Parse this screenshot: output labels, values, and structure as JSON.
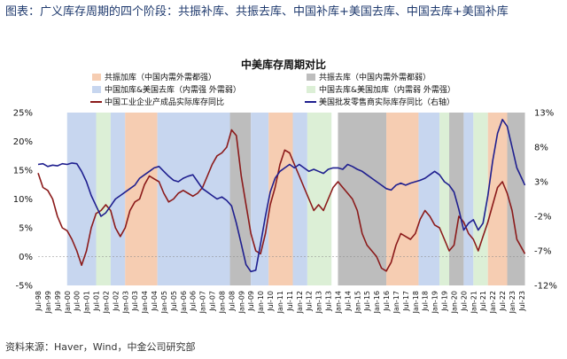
{
  "caption": "图表：广义库存周期的四个阶段：共振补库、共振去库、中国补库+美国去库、中国去库+美国补库",
  "source": "资料来源：Haver，Wind，中金公司研究部",
  "colors": {
    "resonance_restock": "#f6cdb2",
    "resonance_destock": "#bdbdbd",
    "cn_restock_us_destock": "#c7d6ef",
    "cn_destock_us_restock": "#dcefd6",
    "cn_line": "#8b1a1a",
    "us_line": "#1f1f8f"
  },
  "chart_data": {
    "type": "line",
    "title": "中美库存周期对比",
    "x_start": "1998-07",
    "x_end": "2023-12",
    "x_tick_labels": [
      "Jul-98",
      "Jan-99",
      "Jul-99",
      "Jan-00",
      "Jul-00",
      "Jan-01",
      "Jul-01",
      "Jan-02",
      "Jul-02",
      "Jan-03",
      "Jul-03",
      "Jan-04",
      "Jul-04",
      "Jan-05",
      "Jul-05",
      "Jan-06",
      "Jul-06",
      "Jan-07",
      "Jul-07",
      "Jan-08",
      "Jul-08",
      "Jan-09",
      "Jul-09",
      "Jan-10",
      "Jul-10",
      "Jan-11",
      "Jul-11",
      "Jan-12",
      "Jul-12",
      "Jan-13",
      "Jul-13",
      "Jan-14",
      "Jul-14",
      "Jan-15",
      "Jul-15",
      "Jan-16",
      "Jul-16",
      "Jan-17",
      "Jul-17",
      "Jan-18",
      "Jul-18",
      "Jan-19",
      "Jul-19",
      "Jan-20",
      "Jul-20",
      "Jan-21",
      "Jul-21",
      "Jan-22",
      "Jul-22",
      "Jan-23",
      "Jul-23"
    ],
    "y_left": {
      "min": -5,
      "max": 25,
      "ticks": [
        "-5%",
        "0%",
        "5%",
        "10%",
        "15%",
        "20%",
        "25%"
      ]
    },
    "y_right": {
      "min": -12,
      "max": 13,
      "ticks": [
        "-12%",
        "-7%",
        "-2%",
        "3%",
        "8%",
        "13%"
      ]
    },
    "legend": [
      {
        "label": "共振加库（中国内需外需都强）",
        "kind": "resonance_restock"
      },
      {
        "label": "共振去库（中国内需外需都弱）",
        "kind": "resonance_destock"
      },
      {
        "label": "中国加库&美国去库（内需强 外需弱）",
        "kind": "cn_restock_us_destock"
      },
      {
        "label": "中国去库&美国加库（内需弱 外需强）",
        "kind": "cn_destock_us_restock"
      },
      {
        "label": "中国工业企业产成品实际库存同比",
        "kind": "cn_line"
      },
      {
        "label": "美国批发零售商实际库存同比（右轴）",
        "kind": "us_line"
      }
    ],
    "phases": [
      {
        "start": "2000-01",
        "end": "2001-07",
        "kind": "cn_restock_us_destock"
      },
      {
        "start": "2001-07",
        "end": "2002-04",
        "kind": "cn_destock_us_restock"
      },
      {
        "start": "2002-04",
        "end": "2003-01",
        "kind": "cn_restock_us_destock"
      },
      {
        "start": "2003-01",
        "end": "2004-09",
        "kind": "resonance_restock"
      },
      {
        "start": "2004-09",
        "end": "2008-06",
        "kind": "cn_restock_us_destock"
      },
      {
        "start": "2008-06",
        "end": "2009-07",
        "kind": "resonance_destock"
      },
      {
        "start": "2009-07",
        "end": "2010-06",
        "kind": "cn_restock_us_destock"
      },
      {
        "start": "2010-06",
        "end": "2011-09",
        "kind": "resonance_restock"
      },
      {
        "start": "2011-09",
        "end": "2012-06",
        "kind": "cn_restock_us_destock"
      },
      {
        "start": "2012-06",
        "end": "2013-09",
        "kind": "cn_destock_us_restock"
      },
      {
        "start": "2014-01",
        "end": "2016-07",
        "kind": "resonance_destock"
      },
      {
        "start": "2016-07",
        "end": "2018-03",
        "kind": "resonance_restock"
      },
      {
        "start": "2018-03",
        "end": "2019-04",
        "kind": "cn_restock_us_destock"
      },
      {
        "start": "2019-04",
        "end": "2019-10",
        "kind": "cn_destock_us_restock"
      },
      {
        "start": "2019-10",
        "end": "2020-07",
        "kind": "resonance_destock"
      },
      {
        "start": "2020-07",
        "end": "2021-01",
        "kind": "cn_restock_us_destock"
      },
      {
        "start": "2021-01",
        "end": "2021-10",
        "kind": "cn_destock_us_restock"
      },
      {
        "start": "2021-10",
        "end": "2022-10",
        "kind": "resonance_restock"
      },
      {
        "start": "2022-10",
        "end": "2023-09",
        "kind": "resonance_destock"
      }
    ],
    "series": [
      {
        "name": "中国工业企业产成品实际库存同比",
        "axis": "left",
        "color": "#8b1a1a",
        "points": [
          [
            "1998-07",
            14.5
          ],
          [
            "1998-10",
            12
          ],
          [
            "1999-01",
            11.5
          ],
          [
            "1999-04",
            10
          ],
          [
            "1999-07",
            7
          ],
          [
            "1999-10",
            5
          ],
          [
            "2000-01",
            4.5
          ],
          [
            "2000-04",
            3
          ],
          [
            "2000-07",
            1
          ],
          [
            "2000-10",
            -1.5
          ],
          [
            "2001-01",
            1
          ],
          [
            "2001-04",
            5
          ],
          [
            "2001-07",
            7.5
          ],
          [
            "2001-10",
            8
          ],
          [
            "2002-01",
            9
          ],
          [
            "2002-04",
            8
          ],
          [
            "2002-07",
            5
          ],
          [
            "2002-10",
            3.5
          ],
          [
            "2003-01",
            5
          ],
          [
            "2003-04",
            8
          ],
          [
            "2003-07",
            9.5
          ],
          [
            "2003-10",
            10
          ],
          [
            "2004-01",
            12.5
          ],
          [
            "2004-04",
            14
          ],
          [
            "2004-07",
            13.5
          ],
          [
            "2004-10",
            13
          ],
          [
            "2005-01",
            11
          ],
          [
            "2005-04",
            9.5
          ],
          [
            "2005-07",
            10
          ],
          [
            "2005-10",
            11
          ],
          [
            "2006-01",
            11.5
          ],
          [
            "2006-04",
            11
          ],
          [
            "2006-07",
            10.5
          ],
          [
            "2006-10",
            11
          ],
          [
            "2007-01",
            12
          ],
          [
            "2007-04",
            14
          ],
          [
            "2007-07",
            16
          ],
          [
            "2007-10",
            17.5
          ],
          [
            "2008-01",
            18
          ],
          [
            "2008-04",
            19
          ],
          [
            "2008-07",
            22
          ],
          [
            "2008-10",
            21
          ],
          [
            "2009-01",
            14
          ],
          [
            "2009-04",
            9
          ],
          [
            "2009-07",
            4
          ],
          [
            "2009-10",
            1
          ],
          [
            "2010-01",
            0.5
          ],
          [
            "2010-04",
            4
          ],
          [
            "2010-07",
            9
          ],
          [
            "2010-10",
            12
          ],
          [
            "2011-01",
            16
          ],
          [
            "2011-04",
            18.5
          ],
          [
            "2011-07",
            18
          ],
          [
            "2011-10",
            16
          ],
          [
            "2012-01",
            14
          ],
          [
            "2012-04",
            12
          ],
          [
            "2012-07",
            10
          ],
          [
            "2012-10",
            8
          ],
          [
            "2013-01",
            9
          ],
          [
            "2013-04",
            8
          ],
          [
            "2013-07",
            10
          ],
          [
            "2013-10",
            12
          ],
          [
            "2014-01",
            13
          ],
          [
            "2014-04",
            12
          ],
          [
            "2014-07",
            11
          ],
          [
            "2014-10",
            10
          ],
          [
            "2015-01",
            8
          ],
          [
            "2015-04",
            4
          ],
          [
            "2015-07",
            2
          ],
          [
            "2015-10",
            1
          ],
          [
            "2016-01",
            0
          ],
          [
            "2016-04",
            -2
          ],
          [
            "2016-07",
            -2.5
          ],
          [
            "2016-10",
            -1
          ],
          [
            "2017-01",
            2
          ],
          [
            "2017-04",
            4
          ],
          [
            "2017-07",
            3.5
          ],
          [
            "2017-10",
            3
          ],
          [
            "2018-01",
            4
          ],
          [
            "2018-04",
            6.5
          ],
          [
            "2018-07",
            8
          ],
          [
            "2018-10",
            7
          ],
          [
            "2019-01",
            5.5
          ],
          [
            "2019-04",
            5
          ],
          [
            "2019-07",
            3
          ],
          [
            "2019-10",
            1
          ],
          [
            "2020-01",
            2
          ],
          [
            "2020-04",
            7
          ],
          [
            "2020-07",
            6
          ],
          [
            "2020-10",
            4
          ],
          [
            "2021-01",
            3
          ],
          [
            "2021-04",
            1
          ],
          [
            "2021-07",
            3.5
          ],
          [
            "2021-10",
            6
          ],
          [
            "2022-01",
            9
          ],
          [
            "2022-04",
            12
          ],
          [
            "2022-07",
            13
          ],
          [
            "2022-10",
            11
          ],
          [
            "2023-01",
            8
          ],
          [
            "2023-04",
            3
          ],
          [
            "2023-07",
            1.5
          ],
          [
            "2023-09",
            0.5
          ]
        ]
      },
      {
        "name": "美国批发零售商实际库存同比（右轴）",
        "axis": "right",
        "color": "#1f1f8f",
        "points": [
          [
            "1998-07",
            5.5
          ],
          [
            "1998-10",
            5.6
          ],
          [
            "1999-01",
            5.2
          ],
          [
            "1999-04",
            5.4
          ],
          [
            "1999-07",
            5.3
          ],
          [
            "1999-10",
            5.6
          ],
          [
            "2000-01",
            5.5
          ],
          [
            "2000-04",
            5.7
          ],
          [
            "2000-07",
            5.6
          ],
          [
            "2000-10",
            4.5
          ],
          [
            "2001-01",
            3
          ],
          [
            "2001-04",
            1
          ],
          [
            "2001-07",
            -0.5
          ],
          [
            "2001-10",
            -2
          ],
          [
            "2002-01",
            -1.5
          ],
          [
            "2002-04",
            -0.5
          ],
          [
            "2002-07",
            0.5
          ],
          [
            "2002-10",
            1
          ],
          [
            "2003-01",
            1.5
          ],
          [
            "2003-04",
            2
          ],
          [
            "2003-07",
            2.5
          ],
          [
            "2003-10",
            3.5
          ],
          [
            "2004-01",
            4
          ],
          [
            "2004-04",
            4.5
          ],
          [
            "2004-07",
            5
          ],
          [
            "2004-10",
            5.2
          ],
          [
            "2005-01",
            4.5
          ],
          [
            "2005-04",
            3.8
          ],
          [
            "2005-07",
            3.2
          ],
          [
            "2005-10",
            3
          ],
          [
            "2006-01",
            3.5
          ],
          [
            "2006-04",
            3.8
          ],
          [
            "2006-07",
            4
          ],
          [
            "2006-10",
            3
          ],
          [
            "2007-01",
            2
          ],
          [
            "2007-04",
            1.5
          ],
          [
            "2007-07",
            1
          ],
          [
            "2007-10",
            0.5
          ],
          [
            "2008-01",
            0.8
          ],
          [
            "2008-04",
            0.3
          ],
          [
            "2008-07",
            -0.5
          ],
          [
            "2008-10",
            -3
          ],
          [
            "2009-01",
            -6
          ],
          [
            "2009-04",
            -9
          ],
          [
            "2009-07",
            -10
          ],
          [
            "2009-10",
            -9.8
          ],
          [
            "2010-01",
            -6
          ],
          [
            "2010-04",
            -2
          ],
          [
            "2010-07",
            1.5
          ],
          [
            "2010-10",
            3.5
          ],
          [
            "2011-01",
            4.5
          ],
          [
            "2011-04",
            5
          ],
          [
            "2011-07",
            5.5
          ],
          [
            "2011-10",
            5
          ],
          [
            "2012-01",
            5.5
          ],
          [
            "2012-04",
            5
          ],
          [
            "2012-07",
            4.5
          ],
          [
            "2012-10",
            4.8
          ],
          [
            "2013-01",
            4.5
          ],
          [
            "2013-04",
            4.2
          ],
          [
            "2013-07",
            4.8
          ],
          [
            "2013-10",
            5
          ],
          [
            "2014-01",
            5
          ],
          [
            "2014-04",
            4.8
          ],
          [
            "2014-07",
            5.5
          ],
          [
            "2014-10",
            5.2
          ],
          [
            "2015-01",
            4.8
          ],
          [
            "2015-04",
            4.5
          ],
          [
            "2015-07",
            4
          ],
          [
            "2015-10",
            3.5
          ],
          [
            "2016-01",
            3
          ],
          [
            "2016-04",
            2.5
          ],
          [
            "2016-07",
            2
          ],
          [
            "2016-10",
            1.8
          ],
          [
            "2017-01",
            2.5
          ],
          [
            "2017-04",
            2.8
          ],
          [
            "2017-07",
            2.5
          ],
          [
            "2017-10",
            2.8
          ],
          [
            "2018-01",
            3
          ],
          [
            "2018-04",
            3.2
          ],
          [
            "2018-07",
            3.5
          ],
          [
            "2018-10",
            4
          ],
          [
            "2019-01",
            4.5
          ],
          [
            "2019-04",
            4
          ],
          [
            "2019-07",
            3
          ],
          [
            "2019-10",
            2.5
          ],
          [
            "2020-01",
            1.5
          ],
          [
            "2020-04",
            -1
          ],
          [
            "2020-07",
            -4
          ],
          [
            "2020-10",
            -3
          ],
          [
            "2021-01",
            -2.5
          ],
          [
            "2021-04",
            -4
          ],
          [
            "2021-07",
            -3
          ],
          [
            "2021-10",
            1
          ],
          [
            "2022-01",
            6
          ],
          [
            "2022-04",
            10
          ],
          [
            "2022-07",
            12
          ],
          [
            "2022-10",
            11
          ],
          [
            "2023-01",
            8
          ],
          [
            "2023-04",
            5
          ],
          [
            "2023-07",
            3.5
          ],
          [
            "2023-09",
            2.5
          ]
        ]
      }
    ]
  }
}
